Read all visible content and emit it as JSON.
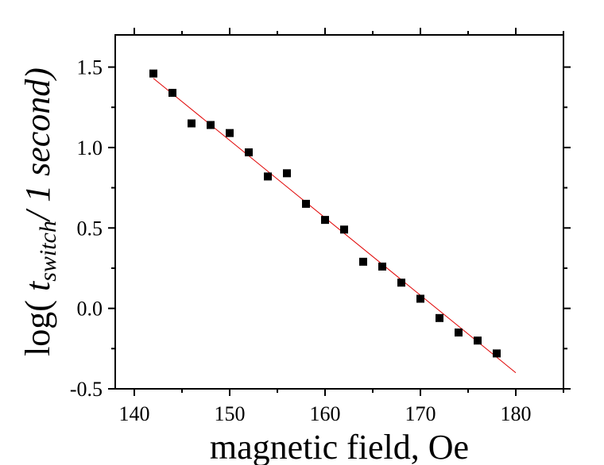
{
  "chart_data": {
    "type": "scatter",
    "xlabel": "magnetic field, Oe",
    "ylabel": {
      "prefix": "log( ",
      "symbol": "t",
      "subscript": "switch",
      "suffix": "/ 1 second)"
    },
    "xlim": [
      138,
      185
    ],
    "ylim": [
      -0.5,
      1.7
    ],
    "xticks": [
      140,
      150,
      160,
      170,
      180
    ],
    "xtick_labels": [
      "140",
      "150",
      "160",
      "170",
      "180"
    ],
    "yticks": [
      -0.5,
      0.0,
      0.5,
      1.0,
      1.5
    ],
    "ytick_labels": [
      "-0.5",
      "0.0",
      "0.5",
      "1.0",
      "1.5"
    ],
    "grid": false,
    "series": [
      {
        "marker": "square",
        "color": "#000000",
        "x": [
          142,
          144,
          146,
          148,
          150,
          152,
          154,
          156,
          158,
          160,
          162,
          164,
          166,
          168,
          170,
          172,
          174,
          176,
          178
        ],
        "y": [
          1.46,
          1.34,
          1.15,
          1.14,
          1.09,
          0.97,
          0.82,
          0.84,
          0.65,
          0.55,
          0.49,
          0.29,
          0.26,
          0.16,
          0.06,
          -0.06,
          -0.15,
          -0.2,
          -0.28
        ]
      }
    ],
    "fit_line": {
      "color": "#e00000",
      "x": [
        142,
        180
      ],
      "y": [
        1.43,
        -0.4
      ]
    }
  }
}
